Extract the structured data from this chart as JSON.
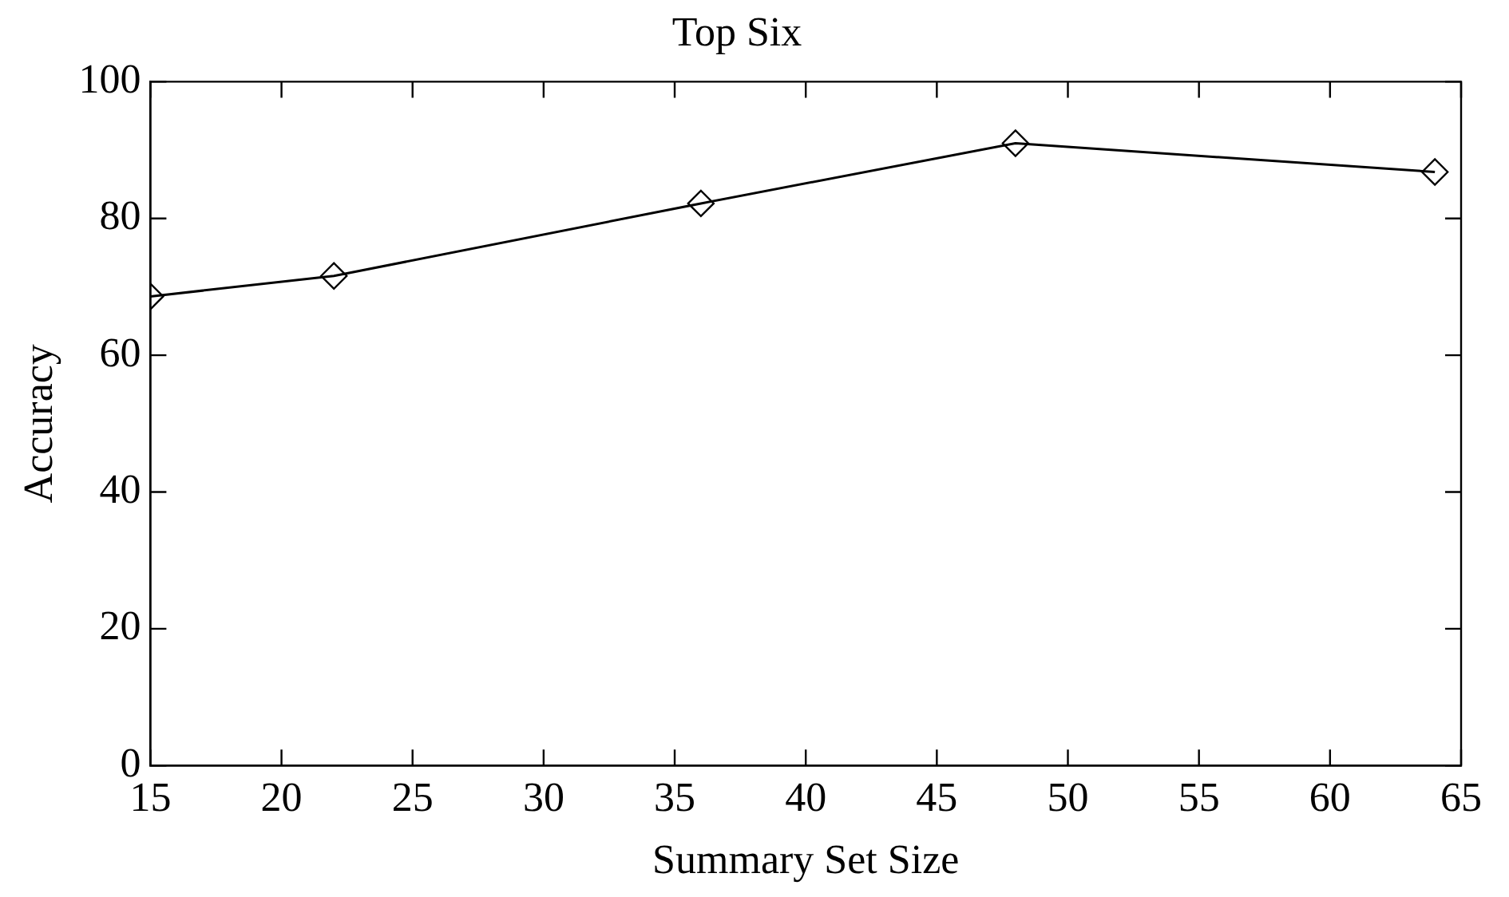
{
  "chart_data": {
    "type": "line",
    "title": "Top Six",
    "xlabel": "Summary Set Size",
    "ylabel": "Accuracy",
    "x": [
      15,
      22,
      36,
      48,
      64
    ],
    "series": [
      {
        "color": "#000000",
        "values": [
          68.6,
          71.6,
          82.2,
          91.0,
          86.8
        ]
      }
    ],
    "xlim": [
      15,
      65
    ],
    "xticks": [
      15,
      20,
      25,
      30,
      35,
      40,
      45,
      50,
      55,
      60,
      65
    ],
    "ylim": [
      0,
      100
    ],
    "yticks": [
      0,
      20,
      40,
      60,
      80,
      100
    ],
    "marker": "diamond",
    "line_style": "solid",
    "grid": false,
    "legend": false
  }
}
